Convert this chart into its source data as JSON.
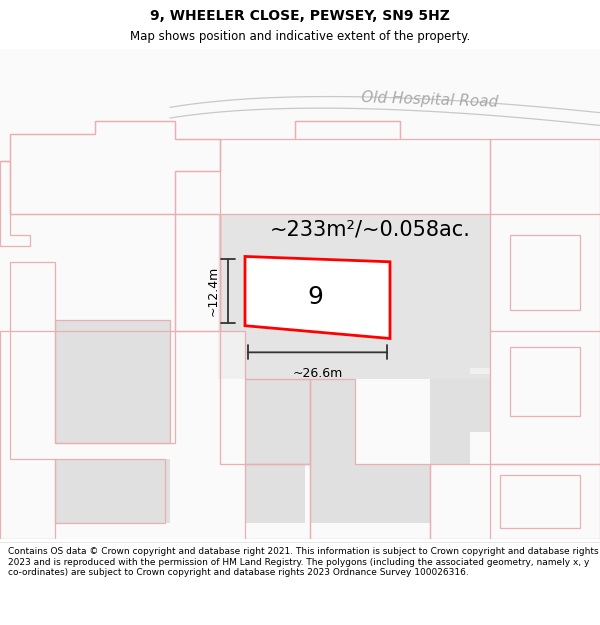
{
  "title": "9, WHEELER CLOSE, PEWSEY, SN9 5HZ",
  "subtitle": "Map shows position and indicative extent of the property.",
  "footer": "Contains OS data © Crown copyright and database right 2021. This information is subject to Crown copyright and database rights 2023 and is reproduced with the permission of HM Land Registry. The polygons (including the associated geometry, namely x, y co-ordinates) are subject to Crown copyright and database rights 2023 Ordnance Survey 100026316.",
  "area_text": "~233m²/~0.058ac.",
  "width_label": "~26.6m",
  "height_label": "~12.4m",
  "property_number": "9",
  "road_label": "Old Hospital Road",
  "map_bg": "#ffffff",
  "property_fill": "#ffffff",
  "property_edge": "#ff0000",
  "gray_fill": "#e0e0e0",
  "pink": "#e8b0b0",
  "road_color": "#c8c8c8",
  "dim_color": "#333333",
  "road_label_color": "#aaaaaa",
  "title_fontsize": 10,
  "subtitle_fontsize": 8.5,
  "area_fontsize": 15,
  "dim_fontsize": 9,
  "num_fontsize": 18,
  "road_fontsize": 11,
  "footer_fontsize": 6.5
}
